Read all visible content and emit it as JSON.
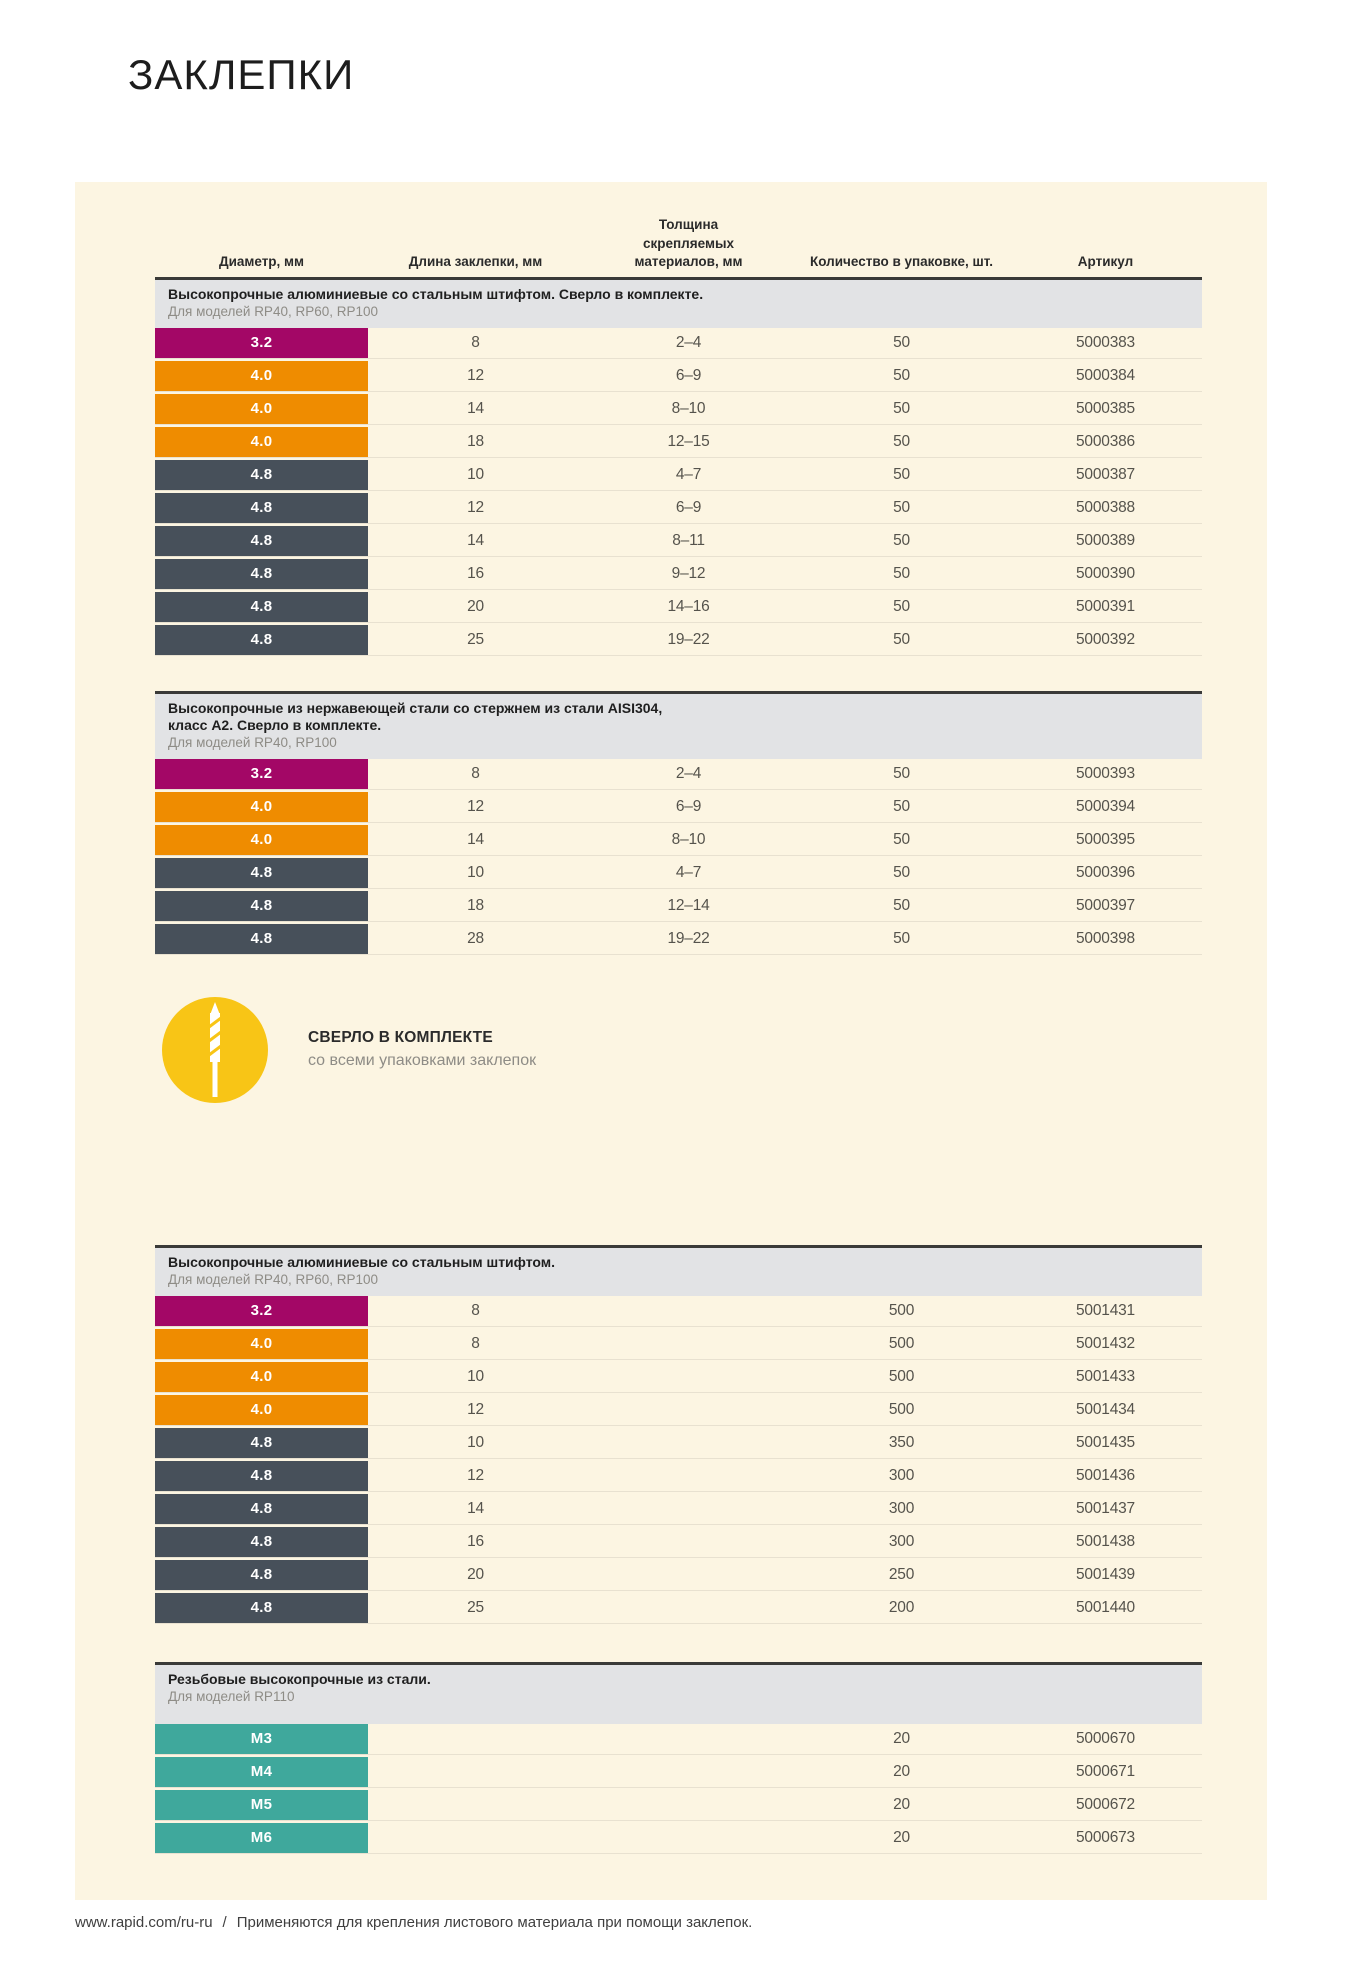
{
  "page": {
    "title": "ЗАКЛЕПКИ"
  },
  "palette": {
    "magenta": "#A30766",
    "orange": "#EF8C00",
    "slate": "#47505A",
    "teal": "#3FA89C",
    "band_gray": "#E2E3E5",
    "panel_cream": "#FCF5E2",
    "badge_yellow": "#F8C516"
  },
  "columns": [
    "Диаметр, мм",
    "Длина заклепки, мм",
    "Толщина скрепляемых материалов, мм",
    "Количество в упаковке, шт.",
    "Артикул"
  ],
  "badge": {
    "icon": "drill-bit-icon",
    "title": "СВЕРЛО В КОМПЛЕКТЕ",
    "subtitle": "со всеми упаковками заклепок"
  },
  "tables": [
    {
      "title_lines": [
        "Высокопрочные алюминиевые со стальным штифтом. Сверло в комплекте."
      ],
      "subtitle": "Для моделей RP40, RP60, RP100",
      "rows": [
        {
          "diameter": "3.2",
          "variant": "magenta",
          "length": "8",
          "thickness": "2–4",
          "qty": "50",
          "sku": "5000383"
        },
        {
          "diameter": "4.0",
          "variant": "orange",
          "length": "12",
          "thickness": "6–9",
          "qty": "50",
          "sku": "5000384"
        },
        {
          "diameter": "4.0",
          "variant": "orange",
          "length": "14",
          "thickness": "8–10",
          "qty": "50",
          "sku": "5000385"
        },
        {
          "diameter": "4.0",
          "variant": "orange",
          "length": "18",
          "thickness": "12–15",
          "qty": "50",
          "sku": "5000386"
        },
        {
          "diameter": "4.8",
          "variant": "slate",
          "length": "10",
          "thickness": "4–7",
          "qty": "50",
          "sku": "5000387"
        },
        {
          "diameter": "4.8",
          "variant": "slate",
          "length": "12",
          "thickness": "6–9",
          "qty": "50",
          "sku": "5000388"
        },
        {
          "diameter": "4.8",
          "variant": "slate",
          "length": "14",
          "thickness": "8–11",
          "qty": "50",
          "sku": "5000389"
        },
        {
          "diameter": "4.8",
          "variant": "slate",
          "length": "16",
          "thickness": "9–12",
          "qty": "50",
          "sku": "5000390"
        },
        {
          "diameter": "4.8",
          "variant": "slate",
          "length": "20",
          "thickness": "14–16",
          "qty": "50",
          "sku": "5000391"
        },
        {
          "diameter": "4.8",
          "variant": "slate",
          "length": "25",
          "thickness": "19–22",
          "qty": "50",
          "sku": "5000392"
        }
      ]
    },
    {
      "title_lines": [
        "Высокопрочные из нержавеющей стали со стержнем из стали AISI304,",
        "класс А2. Сверло в комплекте."
      ],
      "subtitle": "Для моделей RP40, RP100",
      "rows": [
        {
          "diameter": "3.2",
          "variant": "magenta",
          "length": "8",
          "thickness": "2–4",
          "qty": "50",
          "sku": "5000393"
        },
        {
          "diameter": "4.0",
          "variant": "orange",
          "length": "12",
          "thickness": "6–9",
          "qty": "50",
          "sku": "5000394"
        },
        {
          "diameter": "4.0",
          "variant": "orange",
          "length": "14",
          "thickness": "8–10",
          "qty": "50",
          "sku": "5000395"
        },
        {
          "diameter": "4.8",
          "variant": "slate",
          "length": "10",
          "thickness": "4–7",
          "qty": "50",
          "sku": "5000396"
        },
        {
          "diameter": "4.8",
          "variant": "slate",
          "length": "18",
          "thickness": "12–14",
          "qty": "50",
          "sku": "5000397"
        },
        {
          "diameter": "4.8",
          "variant": "slate",
          "length": "28",
          "thickness": "19–22",
          "qty": "50",
          "sku": "5000398"
        }
      ]
    },
    {
      "title_lines": [
        "Высокопрочные алюминиевые со стальным штифтом."
      ],
      "subtitle": "Для моделей RP40, RP60, RP100",
      "rows": [
        {
          "diameter": "3.2",
          "variant": "magenta",
          "length": "8",
          "thickness": "",
          "qty": "500",
          "sku": "5001431"
        },
        {
          "diameter": "4.0",
          "variant": "orange",
          "length": "8",
          "thickness": "",
          "qty": "500",
          "sku": "5001432"
        },
        {
          "diameter": "4.0",
          "variant": "orange",
          "length": "10",
          "thickness": "",
          "qty": "500",
          "sku": "5001433"
        },
        {
          "diameter": "4.0",
          "variant": "orange",
          "length": "12",
          "thickness": "",
          "qty": "500",
          "sku": "5001434"
        },
        {
          "diameter": "4.8",
          "variant": "slate",
          "length": "10",
          "thickness": "",
          "qty": "350",
          "sku": "5001435"
        },
        {
          "diameter": "4.8",
          "variant": "slate",
          "length": "12",
          "thickness": "",
          "qty": "300",
          "sku": "5001436"
        },
        {
          "diameter": "4.8",
          "variant": "slate",
          "length": "14",
          "thickness": "",
          "qty": "300",
          "sku": "5001437"
        },
        {
          "diameter": "4.8",
          "variant": "slate",
          "length": "16",
          "thickness": "",
          "qty": "300",
          "sku": "5001438"
        },
        {
          "diameter": "4.8",
          "variant": "slate",
          "length": "20",
          "thickness": "",
          "qty": "250",
          "sku": "5001439"
        },
        {
          "diameter": "4.8",
          "variant": "slate",
          "length": "25",
          "thickness": "",
          "qty": "200",
          "sku": "5001440"
        }
      ]
    },
    {
      "title_lines": [
        "Резьбовые высокопрочные из стали."
      ],
      "subtitle": "Для моделей RP110",
      "rows": [
        {
          "diameter": "М3",
          "variant": "teal",
          "length": "",
          "thickness": "",
          "qty": "20",
          "sku": "5000670"
        },
        {
          "diameter": "М4",
          "variant": "teal",
          "length": "",
          "thickness": "",
          "qty": "20",
          "sku": "5000671"
        },
        {
          "diameter": "М5",
          "variant": "teal",
          "length": "",
          "thickness": "",
          "qty": "20",
          "sku": "5000672"
        },
        {
          "diameter": "М6",
          "variant": "teal",
          "length": "",
          "thickness": "",
          "qty": "20",
          "sku": "5000673"
        }
      ]
    }
  ],
  "footer": {
    "url": "www.rapid.com/ru-ru",
    "separator": "/",
    "note": "Применяются для крепления листового материала при помощи заклепок."
  }
}
